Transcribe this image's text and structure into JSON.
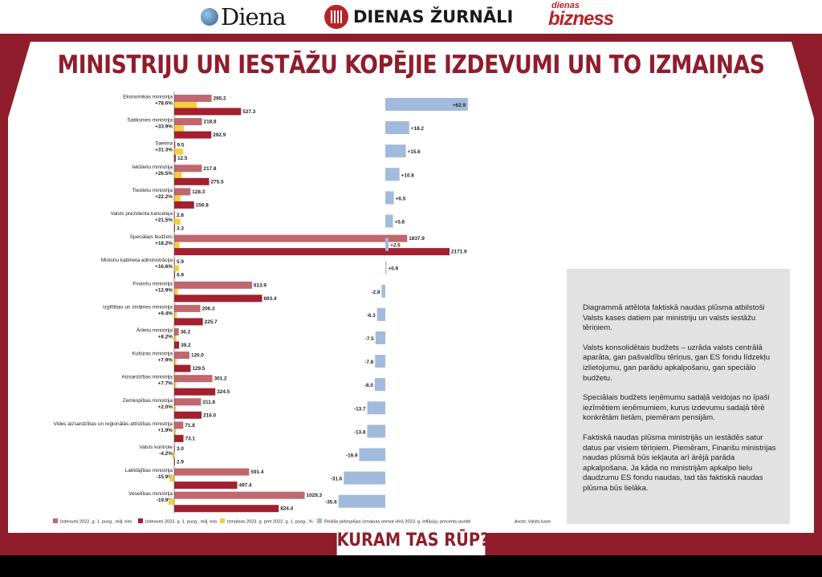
{
  "header": {
    "logo_diena": "Diena",
    "logo_dz": "DIENAS ŽURNĀLI",
    "logo_db_small": "dienas",
    "logo_db_big": "bizness"
  },
  "title": "MINISTRIJU UN IESTĀŽU KOPĒJIE IZDEVUMI UN TO IZMAIŅAS",
  "bottom_title": "KURAM TAS RŪP?",
  "source": "Avots: Valsts kase",
  "info_paragraphs": [
    "Diagrammā attēlota faktiskā naudas plūsma atbilstoši Valsts kases datiem par ministriju un valsts iestāžu tēriņiem.",
    "Valsts konsolidētais budžets – uzrāda valsts centrālā aparāta, gan pašvaldību tēriņus, gan ES fondu līdzekļu izlietojumu, gan parādu apkalpošanu, gan speciālo budžetu.",
    "Speciālais budžets ieņēmumu sadaļā veidojas no īpaši iezīmētiem ieņēmumiem, kurus izdevumu sadaļā tērē konkrētām lietām, piemēram pensijām.",
    "Faktiskā naudas plūsma ministrijās un iestādēs satur datus par visiem tēriņiem. Piemēram, Finanšu ministrijas naudas plūsmā būs iekļauta arī ārējā parāda apkalpošana. Ja kāda no ministrijām apkalpo lielu daudzumu ES fondu naudas, tad tās faktiskā naudas plūsma būs lielāka."
  ],
  "colors": {
    "frame": "#8f1d2c",
    "exp2022": "#c0676f",
    "exp2023": "#a3202f",
    "change": "#f4d03c",
    "real": "#a2badb",
    "info_bg": "#e2e2e2"
  },
  "chart_data": {
    "type": "bar",
    "legend_position": "bottom",
    "legend": [
      "Izdevumi 2022. g. 1. pusg., milj. eiro",
      "Izdevumi 2023. g. 1. pusg., milj. eiro",
      "Izmaiņas 2023. g. pret 2022. g. 1. pusg., %",
      "Reālās pirktspējas izmaiņas ņemot vērā 2023. g. inflāciju, procentu punkti"
    ],
    "categories": [
      "Ekonomikas ministrija",
      "Satiksmes ministrija",
      "Saeima",
      "Iekšlietu ministrija",
      "Tieslietu ministrija",
      "Valsts prezidenta kanceleja",
      "Speciālais budžets",
      "Ministru kabineta administrācija",
      "Finanšu ministrija",
      "Izglītības un zinātnes ministrija",
      "Ārlietu ministrija",
      "Kultūras ministrija",
      "Aizsardzības ministrija",
      "Zemkopības ministrija",
      "Vides aizsardzības un reģionālās attīstības ministrija",
      "Valsts kontrole",
      "Labklājības ministrija",
      "Veselības ministrija"
    ],
    "series": [
      {
        "name": "Izdevumi 2022. g. 1. pusg., milj. eiro",
        "values": [
          295.2,
          218.8,
          9.5,
          217.8,
          128.3,
          2.8,
          1837.9,
          5.9,
          613.9,
          206.3,
          36.2,
          120.0,
          301.2,
          211.8,
          71.8,
          3.0,
          591.4,
          1029.3
        ]
      },
      {
        "name": "Izdevumi 2023. g. 1. pusg., milj. eiro",
        "values": [
          527.3,
          292.9,
          12.5,
          275.5,
          156.8,
          3.3,
          2171.9,
          6.9,
          693.4,
          225.7,
          39.2,
          129.5,
          324.5,
          216.0,
          73.1,
          2.9,
          497.4,
          824.4
        ]
      },
      {
        "name": "Izmaiņas 2023. g. pret 2022. g. 1. pusg., %",
        "values": [
          78.6,
          33.9,
          31.3,
          26.5,
          22.2,
          21.5,
          18.2,
          16.6,
          12.9,
          9.4,
          8.2,
          7.9,
          7.7,
          2.0,
          1.9,
          -4.2,
          -15.9,
          -19.9
        ]
      },
      {
        "name": "Reālās pirktspējas izmaiņas ņemot vērā 2023. g. inflāciju, procentu punkti",
        "values": [
          62.9,
          18.2,
          15.6,
          10.8,
          6.5,
          5.8,
          2.5,
          0.9,
          -2.8,
          -6.3,
          -7.5,
          -7.8,
          -8.0,
          -13.7,
          -13.8,
          -19.9,
          -31.6,
          -35.6
        ]
      }
    ],
    "value_labels": {
      "exp2022": [
        "295.2",
        "218.8",
        "9.5",
        "217.8",
        "128.3",
        "2.8",
        "1837.9",
        "5.9",
        "613.9",
        "206.3",
        "36.2",
        "120.0",
        "301.2",
        "211.8",
        "71.8",
        "3.0",
        "591.4",
        "1029.3"
      ],
      "exp2023": [
        "527.3",
        "292.9",
        "12.5",
        "275.5",
        "156.8",
        "3.3",
        "2171.9",
        "6.9",
        "693.4",
        "225.7",
        "39.2",
        "129.5",
        "324.5",
        "216.0",
        "73.1",
        "2.9",
        "497.4",
        "824.4"
      ],
      "change": [
        "+78.6%",
        "+33.9%",
        "+31.3%",
        "+26.5%",
        "+22.2%",
        "+21.5%",
        "+18.2%",
        "+16.6%",
        "+12.9%",
        "+9.4%",
        "+8.2%",
        "+7.9%",
        "+7.7%",
        "+2.0%",
        "+1.9%",
        "-4.2%",
        "-15.9%",
        "-19.9%"
      ],
      "real": [
        "+62.9",
        "+18.2",
        "+15.6",
        "+10.8",
        "+6.5",
        "+5.8",
        "+2.5",
        "+0.9",
        "-2.8",
        "-6.3",
        "-7.5",
        "-7.8",
        "-8.0",
        "-13.7",
        "-13.8",
        "-19.9",
        "-31.6",
        "-35.6"
      ]
    }
  }
}
